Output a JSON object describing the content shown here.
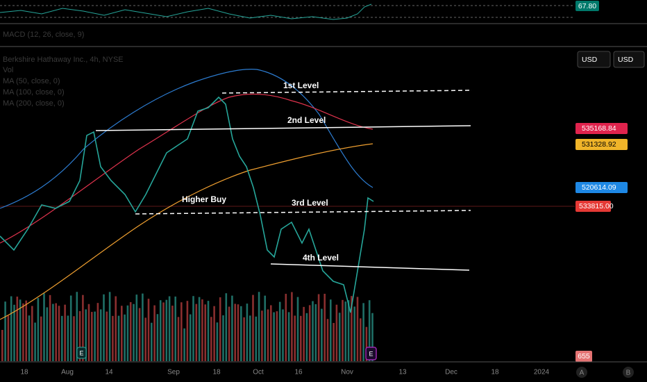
{
  "indicator_pane": {
    "value_tag": "67.80"
  },
  "macd_pane": {
    "label": "MACD (12, 26, close, 9)"
  },
  "legend": {
    "symbol": "Berkshire Hathaway Inc., 4h, NYSE",
    "items": [
      "Vol",
      "MA (50, close, 0)",
      "MA (100, close, 0)",
      "MA (200, close, 0)"
    ]
  },
  "currency_buttons": [
    "USD",
    "USD"
  ],
  "annotations": [
    "1st Level",
    "2nd Level",
    "Higher Buy",
    "3rd Level",
    "4th Level"
  ],
  "price_tags": {
    "ma100": "535168.84",
    "ma200": "531328.92",
    "ma50": "520614.09",
    "last": "533815.00",
    "volume": "655"
  },
  "events": [
    "E",
    "E"
  ],
  "time_axis": [
    "18",
    "Aug",
    "14",
    "Sep",
    "18",
    "Oct",
    "16",
    "Nov",
    "13",
    "Dec",
    "18",
    "2024"
  ],
  "axis_buttons": [
    "A",
    "B"
  ]
}
